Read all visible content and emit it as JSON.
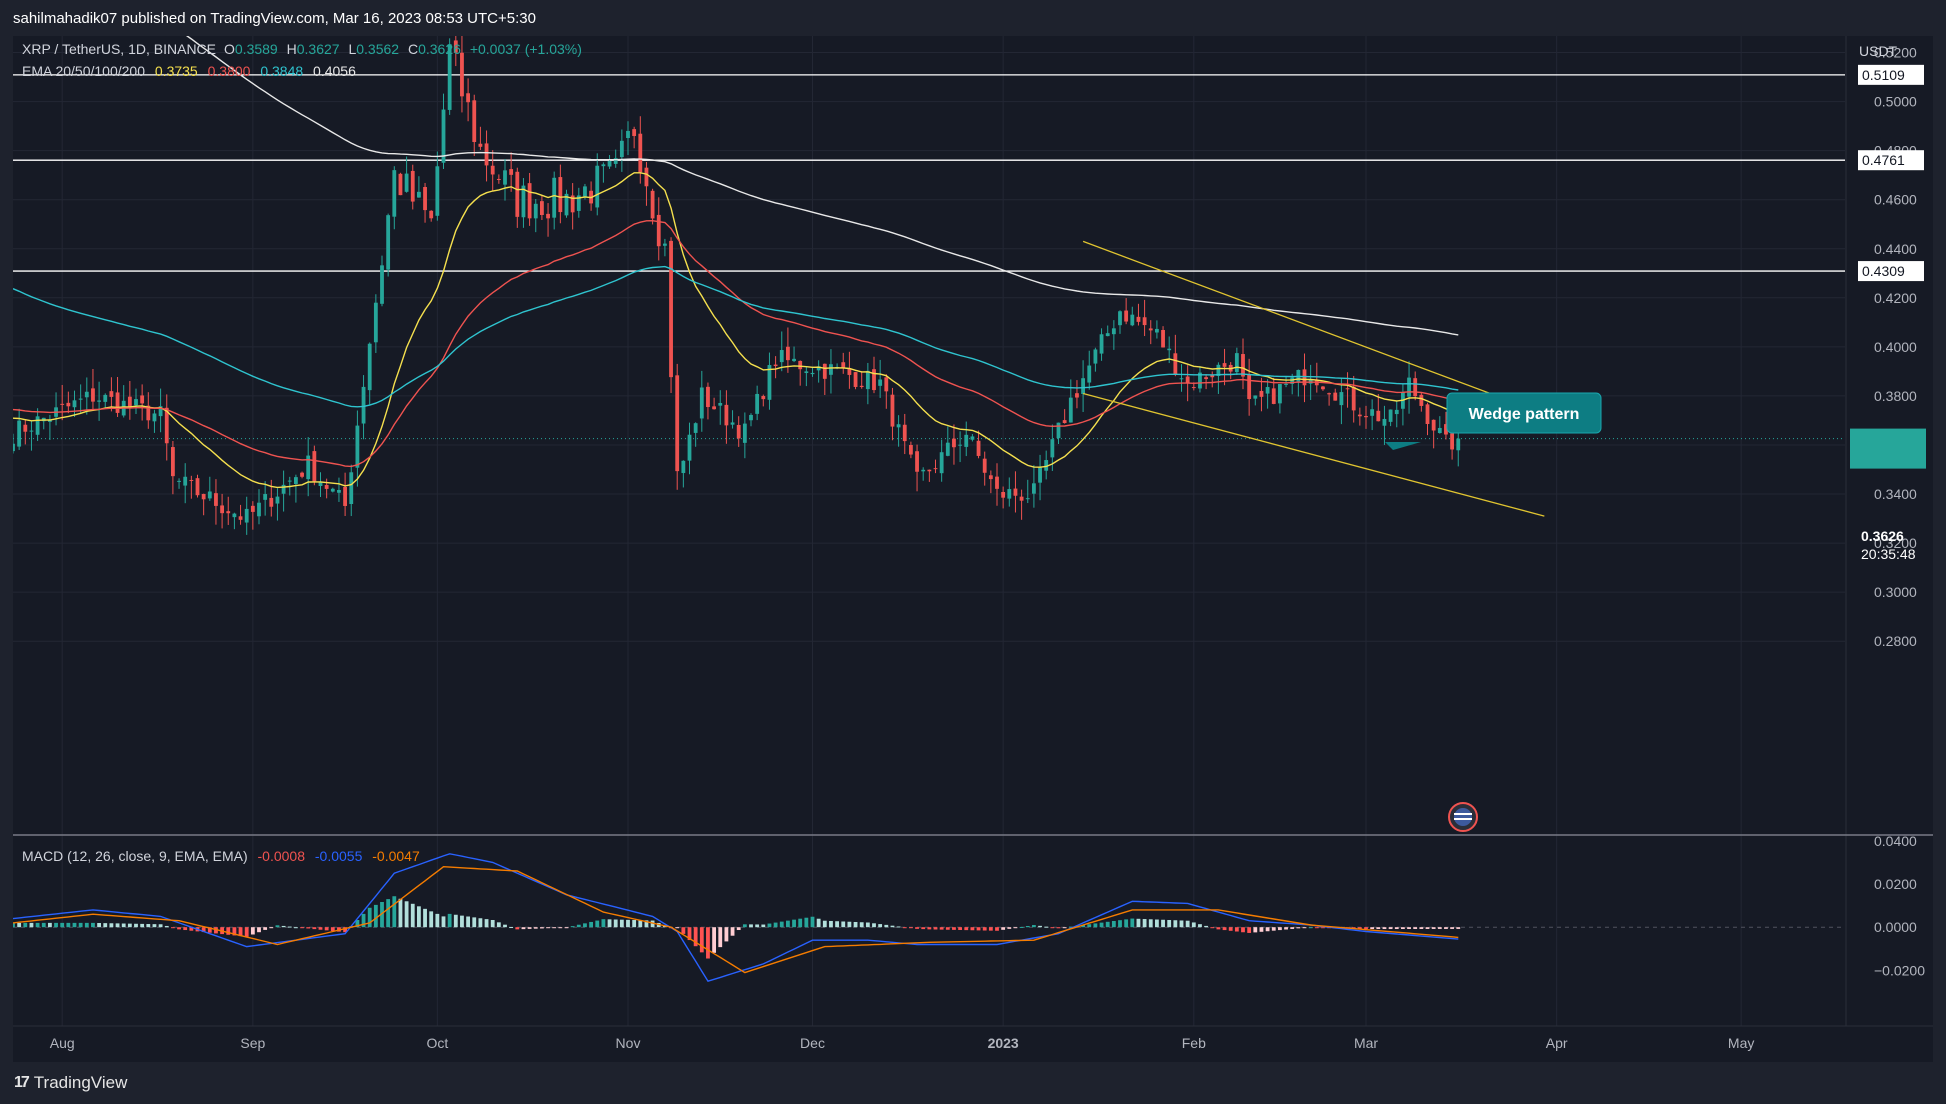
{
  "header": {
    "published_line": "sahilmahadik07 published on TradingView.com, Mar 16, 2023 08:53 UTC+5:30"
  },
  "legend": {
    "symbol": "XRP / TetherUS, 1D, BINANCE",
    "open_label": "O",
    "open": "0.3589",
    "high_label": "H",
    "high": "0.3627",
    "low_label": "L",
    "low": "0.3562",
    "close_label": "C",
    "close": "0.3626",
    "change": "+0.0037 (+1.03%)",
    "ema_label": "EMA 20/50/100/200",
    "ema20": "0.3735",
    "ema50": "0.3800",
    "ema100": "0.3848",
    "ema200": "0.4056",
    "macd_label": "MACD (12, 26, close, 9, EMA, EMA)",
    "macd_hist": "-0.0008",
    "macd_line": "-0.0055",
    "macd_signal": "-0.0047"
  },
  "axis": {
    "currency": "USDT",
    "price_ticks": [
      "0.5200",
      "0.5000",
      "0.4800",
      "0.4600",
      "0.4400",
      "0.4200",
      "0.4000",
      "0.3800",
      "0.3600",
      "0.3400",
      "0.3200",
      "0.3000",
      "0.2800"
    ],
    "macd_ticks": [
      "0.0400",
      "0.0200",
      "0.0000",
      "−0.0200"
    ],
    "x_ticks": [
      "Aug",
      "Sep",
      "Oct",
      "Nov",
      "Dec",
      "2023",
      "Feb",
      "Mar",
      "Apr",
      "May"
    ]
  },
  "price_tag": {
    "value": "0.3626",
    "countdown": "20:35:48"
  },
  "annotation": {
    "label": "Wedge pattern"
  },
  "footer": {
    "brand": "TradingView",
    "glyph": "17"
  },
  "colors": {
    "up": "#26a69a",
    "down": "#ef5350",
    "ema20": "#f5e04e",
    "ema50": "#ef5350",
    "ema100": "#2fc4cf",
    "ema200": "#e8e8e8",
    "macd_line": "#2962ff",
    "macd_signal": "#f57c00",
    "wedge": "#e0c430",
    "callout": "#0d7d83"
  },
  "chart_data": {
    "type": "candlestick",
    "symbol": "XRP / TetherUS",
    "timeframe": "1D",
    "x_range": [
      "2022-07-24",
      "2023-05-17"
    ],
    "ylim": [
      0.265,
      0.53
    ],
    "horizontal_levels": [
      {
        "label": "0.5109",
        "value": 0.5109
      },
      {
        "label": "0.4761",
        "value": 0.4761
      },
      {
        "label": "0.4309",
        "value": 0.4309
      }
    ],
    "wedge_upper_line": {
      "start": [
        "2023-01-14",
        0.443
      ],
      "end": [
        "2023-04-03",
        0.369
      ]
    },
    "wedge_lower_line": {
      "start": [
        "2023-01-14",
        0.381
      ],
      "end": [
        "2023-03-30",
        0.331
      ]
    },
    "anchors": [
      [
        "2022-07-24",
        0.365
      ],
      [
        "2022-08-06",
        0.38
      ],
      [
        "2022-08-17",
        0.372
      ],
      [
        "2022-08-19",
        0.346
      ],
      [
        "2022-08-31",
        0.33
      ],
      [
        "2022-09-10",
        0.352
      ],
      [
        "2022-09-16",
        0.335
      ],
      [
        "2022-09-24",
        0.47
      ],
      [
        "2022-09-30",
        0.45
      ],
      [
        "2022-10-03",
        0.52
      ],
      [
        "2022-10-08",
        0.48
      ],
      [
        "2022-10-14",
        0.46
      ],
      [
        "2022-10-22",
        0.46
      ],
      [
        "2022-10-30",
        0.47
      ],
      [
        "2022-11-02",
        0.49
      ],
      [
        "2022-11-07",
        0.44
      ],
      [
        "2022-11-09",
        0.345
      ],
      [
        "2022-11-13",
        0.38
      ],
      [
        "2022-11-20",
        0.365
      ],
      [
        "2022-11-25",
        0.395
      ],
      [
        "2022-12-05",
        0.39
      ],
      [
        "2022-12-12",
        0.385
      ],
      [
        "2022-12-18",
        0.345
      ],
      [
        "2022-12-26",
        0.365
      ],
      [
        "2022-12-31",
        0.34
      ],
      [
        "2023-01-06",
        0.34
      ],
      [
        "2023-01-12",
        0.378
      ],
      [
        "2023-01-20",
        0.415
      ],
      [
        "2023-01-26",
        0.405
      ],
      [
        "2023-01-31",
        0.385
      ],
      [
        "2023-02-08",
        0.395
      ],
      [
        "2023-02-10",
        0.375
      ],
      [
        "2023-02-20",
        0.39
      ],
      [
        "2023-02-28",
        0.375
      ],
      [
        "2023-03-05",
        0.37
      ],
      [
        "2023-03-08",
        0.385
      ],
      [
        "2023-03-14",
        0.36
      ],
      [
        "2023-03-16",
        0.3626
      ]
    ],
    "macd": {
      "hist_last": -0.0008,
      "macd_last": -0.0055,
      "signal_last": -0.0047,
      "ylim": [
        -0.03,
        0.045
      ],
      "line_anchors": [
        [
          "2022-07-24",
          0.004
        ],
        [
          "2022-08-06",
          0.008
        ],
        [
          "2022-08-17",
          0.005
        ],
        [
          "2022-08-31",
          -0.009
        ],
        [
          "2022-09-16",
          -0.003
        ],
        [
          "2022-09-24",
          0.025
        ],
        [
          "2022-10-03",
          0.034
        ],
        [
          "2022-10-10",
          0.03
        ],
        [
          "2022-10-22",
          0.015
        ],
        [
          "2022-11-05",
          0.005
        ],
        [
          "2022-11-09",
          -0.002
        ],
        [
          "2022-11-14",
          -0.025
        ],
        [
          "2022-11-23",
          -0.017
        ],
        [
          "2022-12-01",
          -0.006
        ],
        [
          "2022-12-10",
          -0.006
        ],
        [
          "2022-12-18",
          -0.008
        ],
        [
          "2022-12-31",
          -0.008
        ],
        [
          "2023-01-10",
          -0.003
        ],
        [
          "2023-01-22",
          0.012
        ],
        [
          "2023-01-31",
          0.011
        ],
        [
          "2023-02-10",
          0.003
        ],
        [
          "2023-02-20",
          0.001
        ],
        [
          "2023-03-01",
          -0.002
        ],
        [
          "2023-03-16",
          -0.0055
        ]
      ],
      "signal_anchors": [
        [
          "2022-07-24",
          0.002
        ],
        [
          "2022-08-06",
          0.006
        ],
        [
          "2022-08-20",
          0.003
        ],
        [
          "2022-09-05",
          -0.008
        ],
        [
          "2022-09-20",
          0.002
        ],
        [
          "2022-10-02",
          0.028
        ],
        [
          "2022-10-14",
          0.026
        ],
        [
          "2022-10-28",
          0.007
        ],
        [
          "2022-11-08",
          0.0
        ],
        [
          "2022-11-20",
          -0.021
        ],
        [
          "2022-12-03",
          -0.009
        ],
        [
          "2022-12-20",
          -0.007
        ],
        [
          "2023-01-06",
          -0.006
        ],
        [
          "2023-01-22",
          0.008
        ],
        [
          "2023-02-05",
          0.008
        ],
        [
          "2023-02-20",
          0.001
        ],
        [
          "2023-03-16",
          -0.0047
        ]
      ]
    }
  }
}
